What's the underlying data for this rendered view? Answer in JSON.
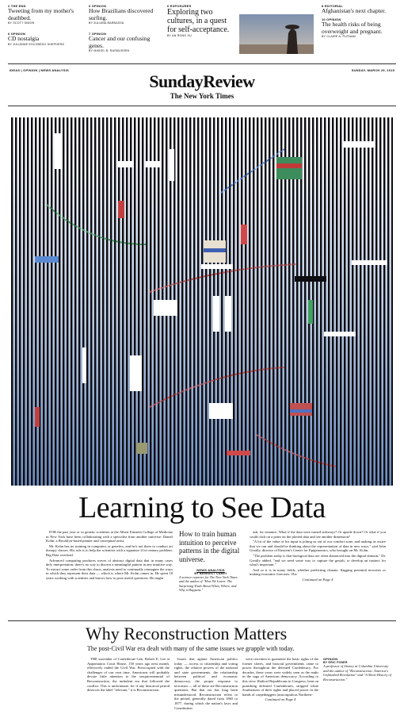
{
  "teasers": [
    {
      "kicker": "2 THE END",
      "headline": "Tweeting from my mother's deathbed.",
      "byline": "BY SCOTT SIMON"
    },
    {
      "kicker": "6 OPINION",
      "headline": "CD nostalgia",
      "byline": "BY JULIANNE ESCOBEDO SHEPHERD"
    },
    {
      "kicker": "6 OPINION",
      "headline": "How Brazilians discovered surfing.",
      "byline": "BY JULIANA BARBASSA"
    },
    {
      "kicker": "7 OPINION",
      "headline": "Cancer and our confusing genes.",
      "byline": "BY MIKKEL B. RASMUSSEN"
    },
    {
      "kicker": "6 EXPOSURES",
      "headline": "Exploring two cultures, in a quest for self-acceptance.",
      "byline": "BY AN RONG XU"
    },
    {
      "kicker": "8 EDITORIAL",
      "headline": "Afghanistan's next chapter.",
      "byline": ""
    },
    {
      "kicker": "10 OPINION",
      "headline": "The health risks of being overweight and pregnant.",
      "byline": "BY CLAIRE A. PUTNAM"
    }
  ],
  "header": {
    "sections": "IDEAS | OPINION | NEWS ANALYSIS",
    "date": "SUNDAY, MARCH 29, 2015",
    "title": "SundayReview",
    "paper": "The New York Times"
  },
  "lead": {
    "headline": "Learning to See Data",
    "deck": "How to train human intuition to perceive patterns in the digital universe.",
    "label": "NEWS ANALYSIS",
    "byline": "BY BENEDICT CAREY",
    "bio": "A science reporter for The New York Times and the author of \"How We Learn: The Surprising Truth About When, Where, and Why it Happens.\"",
    "col1": [
      "FOR the past year or so genetic scientists at the Albert Einstein College of Medicine in New York have been collaborating with a specialist from another universe: Daniel Kohn, a Brooklyn-based painter and conceptual artist.",
      "Mr. Kohn has no training in computers or genetics, and he's not there to conduct art therapy classes. His role is to help the scientists with a signature 21st-century problem: Big Data overload.",
      "Advanced computing produces waves of abstract digital data that in many cases defy interpretation; there's no way to discern a meaningful pattern in any intuitive way. To extract some order from this chaos, analysts need to continually reimagine the ways in which they represent their data — which is where Mr. Kohn comes in. He spent 10 years working with scientists and knows how to pose useful questions. He might"
    ],
    "col3": [
      "ask, for instance, What if the data were turned sideways? Or upside down? Or what if you could click on a point on the plotted data and see another dimension?",
      "\"A lot of the value of his input is jolting us out of our comfort zone, and making us aware that we can and should be thinking about the representation of data in new ways,\" said John Greally, director of Einstein's Center for Epigenomics, who brought on Mr. Kohn.",
      "\"The problem today is that biological data are often abstracted into the digital domain,\" Dr. Greally added, \"and we need some way to capture the gestalt, to develop an instinct for what's important.\"",
      "And so it is in many fields, whether predicting climate, flagging potential terrorists or making economic forecasts. The"
    ],
    "continued": "Continued on Page 4"
  },
  "second": {
    "headline": "Why Reconstruction Matters",
    "deck": "The post-Civil War era dealt with many of the same issues we grapple with today.",
    "col1": "THE surrender of Confederate Gen. Robert E. Lee at Appomattox Court House, 150 years ago next month, effectively ended the Civil War. Preoccupied with the challenges of our own time, Americans will probably devote little attention to the sesquicentennial of Reconstruction, the turbulent era that followed the conflict. This is unfortunate, for if any historical period deserves the label \"relevant,\" it is Reconstruction.",
    "col2": "Issues that agitate American politics today — access to citizenship and voting rights, the relative powers of the national and state governments, the relationship between political and economic democracy, the proper response to terrorism — all of these are Reconstruction questions. But that era has long been misunderstood. Reconstruction refers to the period, generally dated from 1865 to 1877, during which the nation's laws and Constitution",
    "col3": "were rewritten to guarantee the basic rights of the former slaves, and biracial governments came to power throughout the defeated Confederacy. For decades, these years were widely seen as the nadir in the saga of American democracy. According to this view, Radical Republicans in Congress, bent on punishing defeated Confederates, stripped white Southerners of their rights and placed power in the hands of carpetbaggers (unscrupulous Northern-",
    "continued": "Continued on Page 4",
    "label": "OPINION",
    "byline": "BY ERIC FONER",
    "bio": "A professor of history at Columbia University and the author of \"Reconstruction: America's Unfinished Revolution\" and \"A Short History of Reconstruction.\""
  }
}
